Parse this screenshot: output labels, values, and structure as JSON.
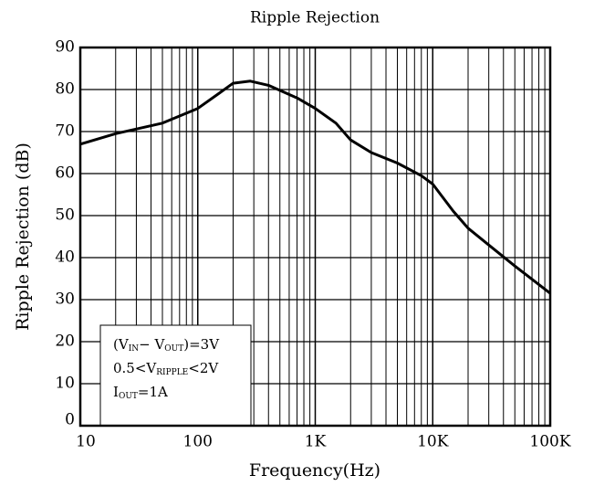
{
  "chart_data": {
    "type": "line",
    "title": "Ripple Rejection",
    "xlabel": "Frequency(Hz)",
    "ylabel": "Ripple Rejection (dB)",
    "xscale": "log",
    "grid": true,
    "xlim": [
      10,
      100000
    ],
    "xticks": [
      10,
      100,
      {
        "value": 1000,
        "label": "1K"
      },
      {
        "value": 10000,
        "label": "10K"
      },
      {
        "value": 100000,
        "label": "100K"
      }
    ],
    "xminorticks": [
      20,
      30,
      40,
      50,
      60,
      70,
      80,
      90,
      200,
      300,
      400,
      500,
      600,
      700,
      800,
      900,
      2000,
      3000,
      4000,
      5000,
      6000,
      7000,
      8000,
      9000,
      20000,
      30000,
      40000,
      50000,
      60000,
      70000,
      80000,
      90000
    ],
    "ylim": [
      0,
      90
    ],
    "yticks": [
      0,
      10,
      20,
      30,
      40,
      50,
      60,
      70,
      80,
      90
    ],
    "series": [
      {
        "color": "#000000",
        "x": [
          10,
          20,
          50,
          100,
          150,
          200,
          280,
          400,
          700,
          1000,
          1500,
          2000,
          3000,
          5000,
          8000,
          10000,
          15000,
          20000,
          30000,
          50000,
          100000
        ],
        "values": [
          67,
          69.5,
          72,
          75.5,
          79,
          81.5,
          82,
          81,
          78,
          75.5,
          72,
          68,
          65,
          62.5,
          59.5,
          57.5,
          51,
          47,
          43,
          38,
          31.5
        ]
      }
    ],
    "annotation": [
      [
        {
          "text": "(V"
        },
        {
          "text": "IN",
          "sub": true
        },
        {
          "text": "− V"
        },
        {
          "text": "OUT",
          "sub": true
        },
        {
          "text": ")=3V"
        }
      ],
      [
        {
          "text": "0.5<V"
        },
        {
          "text": "RIPPLE",
          "sub": true
        },
        {
          "text": "<2V"
        }
      ],
      [
        {
          "text": "I"
        },
        {
          "text": "OUT",
          "sub": true
        },
        {
          "text": "=1A"
        }
      ]
    ]
  }
}
